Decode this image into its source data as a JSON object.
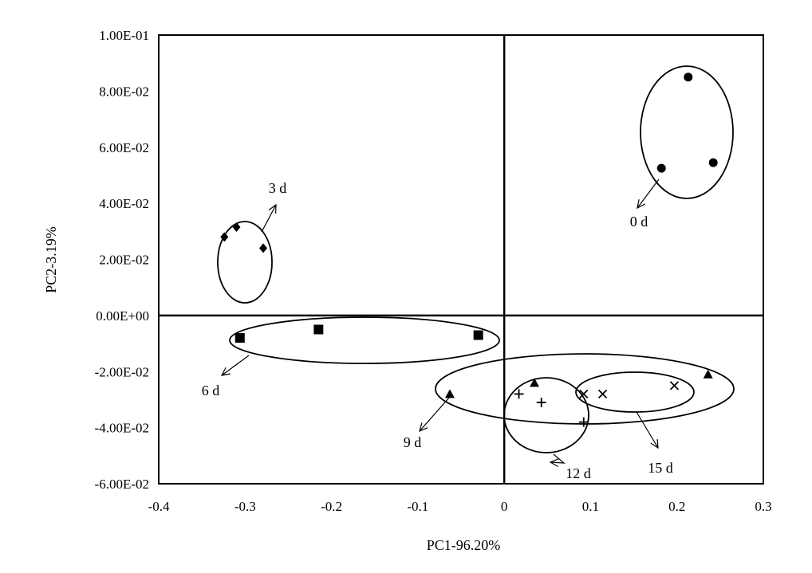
{
  "chart_data": {
    "type": "scatter",
    "title": "",
    "xlabel": "PC1-96.20%",
    "ylabel": "PC2-3.19%",
    "xlim": [
      -0.4,
      0.3
    ],
    "ylim": [
      -0.06,
      0.1
    ],
    "x_ticks": [
      -0.4,
      -0.3,
      -0.2,
      -0.1,
      0,
      0.1,
      0.2,
      0.3
    ],
    "x_tick_labels": [
      "-0.4",
      "-0.3",
      "-0.2",
      "-0.1",
      "0",
      "0.1",
      "0.2",
      "0.3"
    ],
    "y_ticks": [
      0.1,
      0.08,
      0.06,
      0.04,
      0.02,
      0,
      -0.02,
      -0.04,
      -0.06
    ],
    "y_tick_labels": [
      "1.00E-01",
      "8.00E-02",
      "6.00E-02",
      "4.00E-02",
      "2.00E-02",
      "0.00E+00",
      "-2.00E-02",
      "-4.00E-02",
      "-6.00E-02"
    ],
    "grid": false,
    "legend": "none",
    "series": [
      {
        "name": "0 d",
        "marker": "circle",
        "points": [
          [
            0.213,
            0.085
          ],
          [
            0.182,
            0.0525
          ],
          [
            0.242,
            0.0545
          ]
        ]
      },
      {
        "name": "3 d",
        "marker": "diamond",
        "points": [
          [
            -0.31,
            0.0315
          ],
          [
            -0.324,
            0.028
          ],
          [
            -0.279,
            0.024
          ]
        ]
      },
      {
        "name": "6 d",
        "marker": "square",
        "points": [
          [
            -0.306,
            -0.008
          ],
          [
            -0.215,
            -0.005
          ],
          [
            -0.03,
            -0.007
          ]
        ]
      },
      {
        "name": "9 d",
        "marker": "triangle",
        "points": [
          [
            -0.063,
            -0.028
          ],
          [
            0.035,
            -0.024
          ],
          [
            0.236,
            -0.021
          ]
        ]
      },
      {
        "name": "12 d",
        "marker": "plus",
        "points": [
          [
            0.017,
            -0.028
          ],
          [
            0.043,
            -0.031
          ],
          [
            0.092,
            -0.038
          ]
        ]
      },
      {
        "name": "15 d",
        "marker": "cross",
        "points": [
          [
            0.092,
            -0.028
          ],
          [
            0.114,
            -0.028
          ],
          [
            0.197,
            -0.025
          ]
        ]
      }
    ]
  }
}
